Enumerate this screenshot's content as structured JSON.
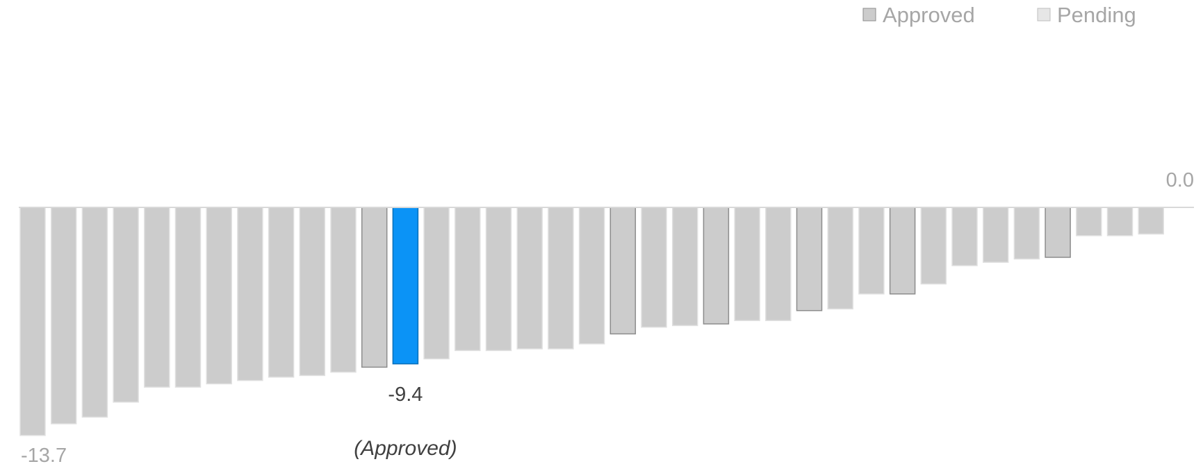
{
  "chart_data": {
    "type": "bar",
    "title": "",
    "xlabel": "",
    "ylabel": "",
    "ylim": [
      -14.5,
      0
    ],
    "legend": {
      "placement": "top-right",
      "items": [
        {
          "label": "Approved",
          "color": "#cccccc",
          "border": "#8c8c8c"
        },
        {
          "label": "Pending",
          "color": "#e6e6e6",
          "border": "#bfbfbf"
        }
      ]
    },
    "colors": {
      "approved": "#cccccc",
      "approved_border": "#8c8c8c",
      "pending": "#cccccc",
      "pending_border": "#e0e0e0",
      "highlight": "#0b93f6",
      "highlight_border": "#0a6fb8",
      "baseline": "#d9d9d9"
    },
    "values": [
      -13.7,
      -13.0,
      -12.6,
      -11.7,
      -10.8,
      -10.8,
      -10.6,
      -10.4,
      -10.2,
      -10.1,
      -9.9,
      -9.6,
      -9.4,
      -9.1,
      -8.6,
      -8.6,
      -8.5,
      -8.5,
      -8.2,
      -7.6,
      -7.2,
      -7.1,
      -7.0,
      -6.8,
      -6.8,
      -6.2,
      -6.1,
      -5.2,
      -5.2,
      -4.6,
      -3.5,
      -3.3,
      -3.1,
      -3.0,
      -1.7,
      -1.7,
      -1.6
    ],
    "status": [
      "Pending",
      "Pending",
      "Pending",
      "Pending",
      "Pending",
      "Pending",
      "Pending",
      "Pending",
      "Pending",
      "Pending",
      "Pending",
      "Approved",
      "Approved",
      "Pending",
      "Pending",
      "Pending",
      "Pending",
      "Pending",
      "Pending",
      "Approved",
      "Pending",
      "Pending",
      "Approved",
      "Pending",
      "Pending",
      "Approved",
      "Pending",
      "Pending",
      "Approved",
      "Pending",
      "Pending",
      "Pending",
      "Pending",
      "Approved",
      "Pending",
      "Pending",
      "Pending"
    ],
    "highlight_index": 12,
    "annotations": {
      "min_label": "-13.7",
      "zero_label": "0.0",
      "highlight_value_label": "-9.4",
      "highlight_status_label": "(Approved)"
    }
  }
}
